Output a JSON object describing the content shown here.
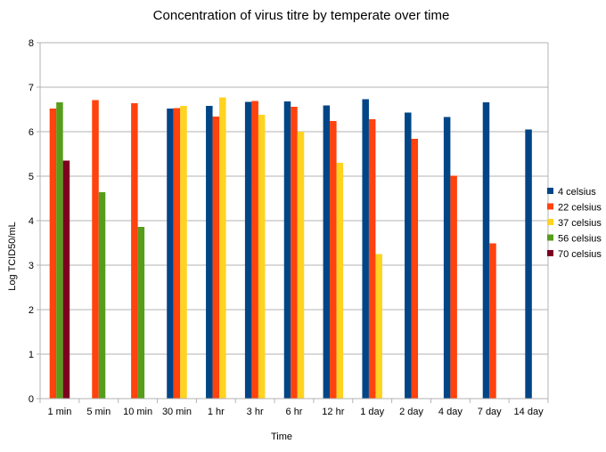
{
  "chart_data": {
    "type": "bar",
    "title": "Concentration of virus titre by temperate over time",
    "xlabel": "Time",
    "ylabel": "Log TCID50/mL",
    "ylim": [
      0,
      8
    ],
    "y_ticks": [
      0,
      1,
      2,
      3,
      4,
      5,
      6,
      7,
      8
    ],
    "grid": true,
    "legend_position": "right",
    "categories": [
      "1 min",
      "5 min",
      "10 min",
      "30 min",
      "1 hr",
      "3 hr",
      "6 hr",
      "12 hr",
      "1 day",
      "2 day",
      "4 day",
      "7 day",
      "14 day"
    ],
    "series": [
      {
        "name": "4 celsius",
        "color": "#004586",
        "values": [
          null,
          null,
          null,
          6.52,
          6.58,
          6.67,
          6.68,
          6.59,
          6.73,
          6.43,
          6.33,
          6.66,
          6.05
        ]
      },
      {
        "name": "22 celsius",
        "color": "#ff420e",
        "values": [
          6.52,
          6.71,
          6.64,
          6.53,
          6.34,
          6.69,
          6.56,
          6.24,
          6.28,
          5.84,
          5.01,
          3.49,
          null
        ]
      },
      {
        "name": "37 celsius",
        "color": "#ffd320",
        "values": [
          null,
          null,
          null,
          6.58,
          6.77,
          6.38,
          6.0,
          5.3,
          3.25,
          null,
          null,
          null,
          null
        ]
      },
      {
        "name": "56 celsius",
        "color": "#579d1c",
        "values": [
          6.66,
          4.64,
          3.86,
          null,
          null,
          null,
          null,
          null,
          null,
          null,
          null,
          null,
          null
        ]
      },
      {
        "name": "70 celsius",
        "color": "#7e0021",
        "values": [
          5.35,
          null,
          null,
          null,
          null,
          null,
          null,
          null,
          null,
          null,
          null,
          null,
          null
        ]
      }
    ]
  }
}
